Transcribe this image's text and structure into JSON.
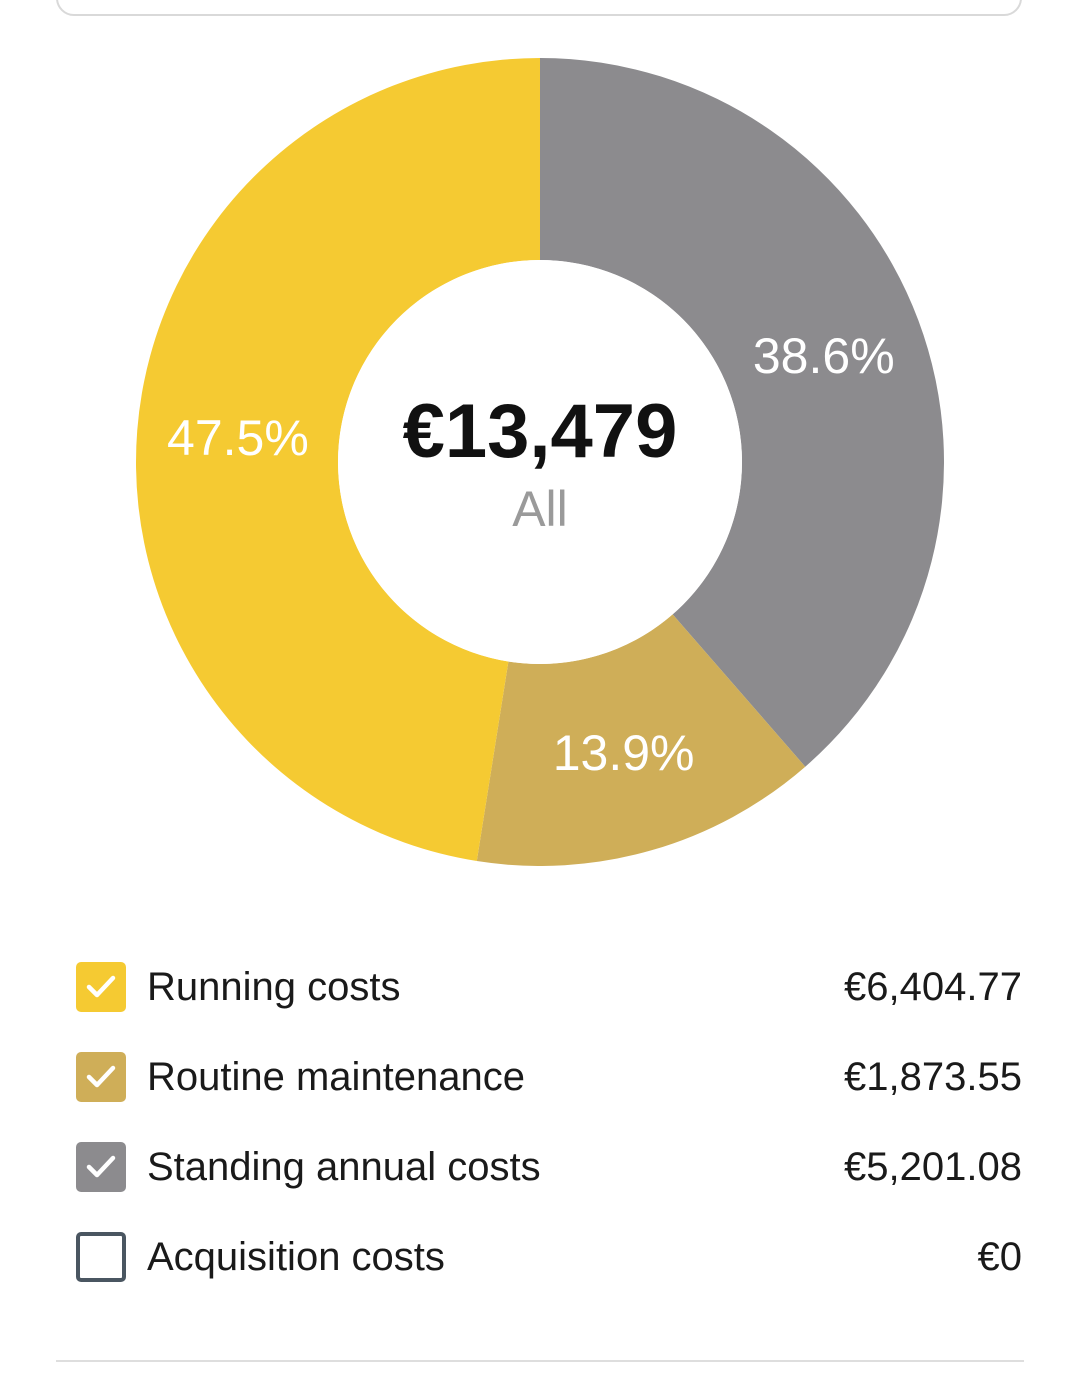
{
  "summary": {
    "total": "€13,479",
    "filter_label": "All"
  },
  "colors": {
    "running": "#f5ca32",
    "maintenance": "#cfae58",
    "standing": "#8c8b8e",
    "acquisition_border": "#4a5661"
  },
  "chart_data": {
    "type": "pie",
    "donut": true,
    "labels": [
      "Standing annual costs",
      "Routine maintenance",
      "Running costs"
    ],
    "values": [
      38.6,
      13.9,
      47.5
    ],
    "value_labels": [
      "38.6%",
      "13.9%",
      "47.5%"
    ],
    "colors": [
      "#8c8b8e",
      "#cfae58",
      "#f5ca32"
    ],
    "center_text": "€13,479",
    "center_subtext": "All"
  },
  "legend": [
    {
      "label": "Running costs",
      "value": "€6,404.77",
      "checked": true,
      "color": "#f5ca32",
      "icon": "checkbox-checked-icon"
    },
    {
      "label": "Routine maintenance",
      "value": "€1,873.55",
      "checked": true,
      "color": "#cfae58",
      "icon": "checkbox-checked-icon"
    },
    {
      "label": "Standing annual costs",
      "value": "€5,201.08",
      "checked": true,
      "color": "#8c8b8e",
      "icon": "checkbox-checked-icon"
    },
    {
      "label": "Acquisition costs",
      "value": "€0",
      "checked": false,
      "color": "#4a5661",
      "icon": "checkbox-empty-icon"
    }
  ]
}
